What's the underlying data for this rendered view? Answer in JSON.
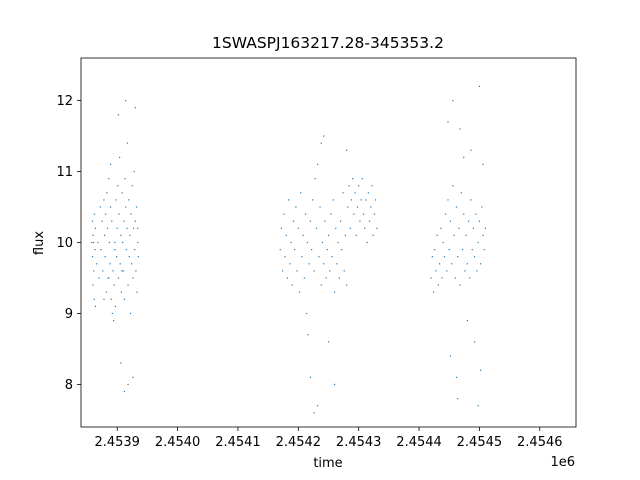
{
  "chart_data": {
    "type": "scatter",
    "title": "1SWASPJ163217.28-345353.2",
    "xlabel": "time",
    "ylabel": "flux",
    "x_offset_label": "1e6",
    "xlim": [
      2453840,
      2454660
    ],
    "ylim": [
      7.4,
      12.6
    ],
    "x_ticks": [
      2453900,
      2454000,
      2454100,
      2454200,
      2454300,
      2454400,
      2454500,
      2454600
    ],
    "x_tick_labels": [
      "2.4539",
      "2.4540",
      "2.4541",
      "2.4542",
      "2.4543",
      "2.4544",
      "2.4545",
      "2.4546"
    ],
    "y_ticks": [
      8,
      9,
      10,
      11,
      12
    ],
    "y_tick_labels": [
      "8",
      "9",
      "10",
      "11",
      "12"
    ],
    "grid": false,
    "marker_color": "#1f77b4",
    "series": [
      {
        "values": [
          [
            2453859,
            10.3
          ],
          [
            2453859,
            9.8
          ],
          [
            2453860,
            9.4
          ],
          [
            2453860,
            10.1
          ],
          [
            2453861,
            9.6
          ],
          [
            2453862,
            10.4
          ],
          [
            2453862,
            9.2
          ],
          [
            2453863,
            9.9
          ],
          [
            2453864,
            9.1
          ],
          [
            2453864,
            10.2
          ],
          [
            2453866,
            9.7
          ],
          [
            2453868,
            10.0
          ],
          [
            2453870,
            9.5
          ],
          [
            2453872,
            10.5
          ],
          [
            2453873,
            9.9
          ],
          [
            2453875,
            10.3
          ],
          [
            2453876,
            9.6
          ],
          [
            2453878,
            10.6
          ],
          [
            2453879,
            10.1
          ],
          [
            2453880,
            9.8
          ],
          [
            2453881,
            10.4
          ],
          [
            2453882,
            9.3
          ],
          [
            2453883,
            10.7
          ],
          [
            2453884,
            10.2
          ],
          [
            2453885,
            9.5
          ],
          [
            2453886,
            10.9
          ],
          [
            2453887,
            10.0
          ],
          [
            2453888,
            9.7
          ],
          [
            2453889,
            11.1
          ],
          [
            2453889,
            10.5
          ],
          [
            2453890,
            9.2
          ],
          [
            2453891,
            10.3
          ],
          [
            2453892,
            9.0
          ],
          [
            2453893,
            9.6
          ],
          [
            2453894,
            8.9
          ],
          [
            2453895,
            9.4
          ],
          [
            2453896,
            10.0
          ],
          [
            2453897,
            9.1
          ],
          [
            2453898,
            10.6
          ],
          [
            2453899,
            9.8
          ],
          [
            2453900,
            10.2
          ],
          [
            2453901,
            10.8
          ],
          [
            2453902,
            9.5
          ],
          [
            2453903,
            10.4
          ],
          [
            2453904,
            11.2
          ],
          [
            2453905,
            9.7
          ],
          [
            2453906,
            10.1
          ],
          [
            2453907,
            9.3
          ],
          [
            2453908,
            10.7
          ],
          [
            2453909,
            10.0
          ],
          [
            2453910,
            9.6
          ],
          [
            2453911,
            10.3
          ],
          [
            2453912,
            9.2
          ],
          [
            2453913,
            10.9
          ],
          [
            2453914,
            10.5
          ],
          [
            2453915,
            9.9
          ],
          [
            2453916,
            10.2
          ],
          [
            2453917,
            11.4
          ],
          [
            2453918,
            9.4
          ],
          [
            2453919,
            10.6
          ],
          [
            2453920,
            9.8
          ],
          [
            2453921,
            10.1
          ],
          [
            2453922,
            9.0
          ],
          [
            2453923,
            10.4
          ],
          [
            2453924,
            9.7
          ],
          [
            2453925,
            10.8
          ],
          [
            2453926,
            9.5
          ],
          [
            2453927,
            10.2
          ],
          [
            2453928,
            11.0
          ],
          [
            2453929,
            9.9
          ],
          [
            2453930,
            10.3
          ],
          [
            2453931,
            9.6
          ],
          [
            2453932,
            10.5
          ],
          [
            2453933,
            9.3
          ],
          [
            2453934,
            10.0
          ],
          [
            2453935,
            9.8
          ],
          [
            2453902,
            11.8
          ],
          [
            2453906,
            8.3
          ],
          [
            2453914,
            12.0
          ],
          [
            2453918,
            8.0
          ],
          [
            2453930,
            11.9
          ],
          [
            2453926,
            8.1
          ],
          [
            2453858,
            10.0
          ],
          [
            2453861,
            10.0
          ],
          [
            2453896,
            9.9
          ],
          [
            2453908,
            9.6
          ],
          [
            2453934,
            10.2
          ],
          [
            2453878,
            9.2
          ],
          [
            2453886,
            9.5
          ],
          [
            2453912,
            7.9
          ],
          [
            2454170,
            9.9
          ],
          [
            2454172,
            10.2
          ],
          [
            2454174,
            9.6
          ],
          [
            2454176,
            10.4
          ],
          [
            2454178,
            9.8
          ],
          [
            2454180,
            10.1
          ],
          [
            2454182,
            9.5
          ],
          [
            2454184,
            10.6
          ],
          [
            2454186,
            9.7
          ],
          [
            2454188,
            10.0
          ],
          [
            2454190,
            9.4
          ],
          [
            2454192,
            10.3
          ],
          [
            2454194,
            9.9
          ],
          [
            2454196,
            10.5
          ],
          [
            2454198,
            9.6
          ],
          [
            2454200,
            10.2
          ],
          [
            2454202,
            9.3
          ],
          [
            2454204,
            10.7
          ],
          [
            2454206,
            9.8
          ],
          [
            2454208,
            10.1
          ],
          [
            2454210,
            9.5
          ],
          [
            2454212,
            10.4
          ],
          [
            2454214,
            9.0
          ],
          [
            2454215,
            10.0
          ],
          [
            2454216,
            8.7
          ],
          [
            2454218,
            9.7
          ],
          [
            2454220,
            10.3
          ],
          [
            2454222,
            9.9
          ],
          [
            2454224,
            10.6
          ],
          [
            2454226,
            9.6
          ],
          [
            2454228,
            10.9
          ],
          [
            2454230,
            10.2
          ],
          [
            2454232,
            11.1
          ],
          [
            2454234,
            9.8
          ],
          [
            2454236,
            10.5
          ],
          [
            2454238,
            9.4
          ],
          [
            2454240,
            10.0
          ],
          [
            2454242,
            9.7
          ],
          [
            2454244,
            10.3
          ],
          [
            2454246,
            9.5
          ],
          [
            2454248,
            9.9
          ],
          [
            2454250,
            10.1
          ],
          [
            2454252,
            9.6
          ],
          [
            2454254,
            10.4
          ],
          [
            2454256,
            9.8
          ],
          [
            2454258,
            10.6
          ],
          [
            2454260,
            9.3
          ],
          [
            2454262,
            10.2
          ],
          [
            2454264,
            9.7
          ],
          [
            2454266,
            10.0
          ],
          [
            2454268,
            9.5
          ],
          [
            2454270,
            10.3
          ],
          [
            2454272,
            9.9
          ],
          [
            2454274,
            10.7
          ],
          [
            2454276,
            9.6
          ],
          [
            2454278,
            10.1
          ],
          [
            2454280,
            9.4
          ],
          [
            2454282,
            10.5
          ],
          [
            2454284,
            10.8
          ],
          [
            2454286,
            10.2
          ],
          [
            2454288,
            10.6
          ],
          [
            2454290,
            10.9
          ],
          [
            2454292,
            10.4
          ],
          [
            2454294,
            10.7
          ],
          [
            2454296,
            10.1
          ],
          [
            2454298,
            10.5
          ],
          [
            2454300,
            10.8
          ],
          [
            2454302,
            10.3
          ],
          [
            2454304,
            10.6
          ],
          [
            2454306,
            10.9
          ],
          [
            2454308,
            10.4
          ],
          [
            2454310,
            10.2
          ],
          [
            2454312,
            10.6
          ],
          [
            2454314,
            10.0
          ],
          [
            2454316,
            10.7
          ],
          [
            2454318,
            10.3
          ],
          [
            2454320,
            10.5
          ],
          [
            2454322,
            10.8
          ],
          [
            2454324,
            10.1
          ],
          [
            2454326,
            10.4
          ],
          [
            2454328,
            10.6
          ],
          [
            2454330,
            10.2
          ],
          [
            2454226,
            7.6
          ],
          [
            2454232,
            7.7
          ],
          [
            2454238,
            11.4
          ],
          [
            2454242,
            11.5
          ],
          [
            2454220,
            8.1
          ],
          [
            2454260,
            8.0
          ],
          [
            2454280,
            11.3
          ],
          [
            2454250,
            8.6
          ],
          [
            2454420,
            9.5
          ],
          [
            2454422,
            9.8
          ],
          [
            2454424,
            9.3
          ],
          [
            2454426,
            9.9
          ],
          [
            2454428,
            9.6
          ],
          [
            2454430,
            10.1
          ],
          [
            2454432,
            9.4
          ],
          [
            2454434,
            9.7
          ],
          [
            2454436,
            10.2
          ],
          [
            2454438,
            9.5
          ],
          [
            2454440,
            10.0
          ],
          [
            2454442,
            9.8
          ],
          [
            2454444,
            10.4
          ],
          [
            2454446,
            9.6
          ],
          [
            2454448,
            10.6
          ],
          [
            2454450,
            9.9
          ],
          [
            2454452,
            10.3
          ],
          [
            2454454,
            9.7
          ],
          [
            2454456,
            10.8
          ],
          [
            2454458,
            10.1
          ],
          [
            2454460,
            9.5
          ],
          [
            2454462,
            10.5
          ],
          [
            2454464,
            9.8
          ],
          [
            2454466,
            10.2
          ],
          [
            2454468,
            9.4
          ],
          [
            2454470,
            10.7
          ],
          [
            2454472,
            9.9
          ],
          [
            2454474,
            10.4
          ],
          [
            2454476,
            9.6
          ],
          [
            2454478,
            10.1
          ],
          [
            2454480,
            9.7
          ],
          [
            2454482,
            10.3
          ],
          [
            2454484,
            9.5
          ],
          [
            2454486,
            10.6
          ],
          [
            2454488,
            9.9
          ],
          [
            2454490,
            10.2
          ],
          [
            2454492,
            9.8
          ],
          [
            2454494,
            10.4
          ],
          [
            2454496,
            9.6
          ],
          [
            2454498,
            10.0
          ],
          [
            2454500,
            10.3
          ],
          [
            2454502,
            9.7
          ],
          [
            2454504,
            10.5
          ],
          [
            2454506,
            10.1
          ],
          [
            2454508,
            9.9
          ],
          [
            2454510,
            10.2
          ],
          [
            2454456,
            12.0
          ],
          [
            2454462,
            8.1
          ],
          [
            2454464,
            7.8
          ],
          [
            2454468,
            11.6
          ],
          [
            2454486,
            11.3
          ],
          [
            2454492,
            8.6
          ],
          [
            2454500,
            12.2
          ],
          [
            2454502,
            8.2
          ],
          [
            2454498,
            7.7
          ],
          [
            2454474,
            11.2
          ],
          [
            2454480,
            8.9
          ],
          [
            2454506,
            11.1
          ],
          [
            2454448,
            11.7
          ],
          [
            2454452,
            8.4
          ]
        ]
      }
    ]
  }
}
